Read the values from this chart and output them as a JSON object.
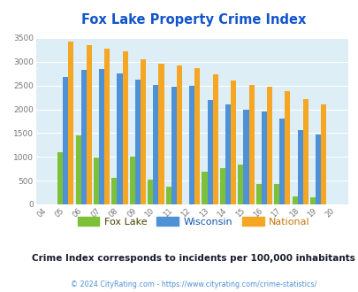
{
  "title": "Fox Lake Property Crime Index",
  "years": [
    "04",
    "05",
    "06",
    "07",
    "08",
    "09",
    "10",
    "11",
    "12",
    "13",
    "14",
    "15",
    "16",
    "17",
    "18",
    "19",
    "20"
  ],
  "fox_lake": [
    0,
    1100,
    1460,
    980,
    560,
    1000,
    530,
    380,
    0,
    680,
    760,
    830,
    420,
    430,
    160,
    150,
    0
  ],
  "wisconsin": [
    0,
    2680,
    2820,
    2840,
    2760,
    2620,
    2510,
    2470,
    2490,
    2190,
    2100,
    2000,
    1950,
    1800,
    1560,
    1470,
    0
  ],
  "national": [
    0,
    3420,
    3350,
    3270,
    3220,
    3060,
    2960,
    2920,
    2870,
    2730,
    2610,
    2510,
    2480,
    2380,
    2210,
    2110,
    0
  ],
  "fox_lake_color": "#7dc13a",
  "wisconsin_color": "#4f91d6",
  "national_color": "#f5a623",
  "bg_color": "#ddeef6",
  "title_color": "#1155cc",
  "ylim": [
    0,
    3500
  ],
  "yticks": [
    0,
    500,
    1000,
    1500,
    2000,
    2500,
    3000,
    3500
  ],
  "subtitle": "Crime Index corresponds to incidents per 100,000 inhabitants",
  "footer": "© 2024 CityRating.com - https://www.cityrating.com/crime-statistics/",
  "subtitle_color": "#1a1a2e",
  "footer_color": "#4f91d6",
  "legend_fox_color": "#444400",
  "legend_wi_color": "#1155aa",
  "legend_nat_color": "#c8750a"
}
